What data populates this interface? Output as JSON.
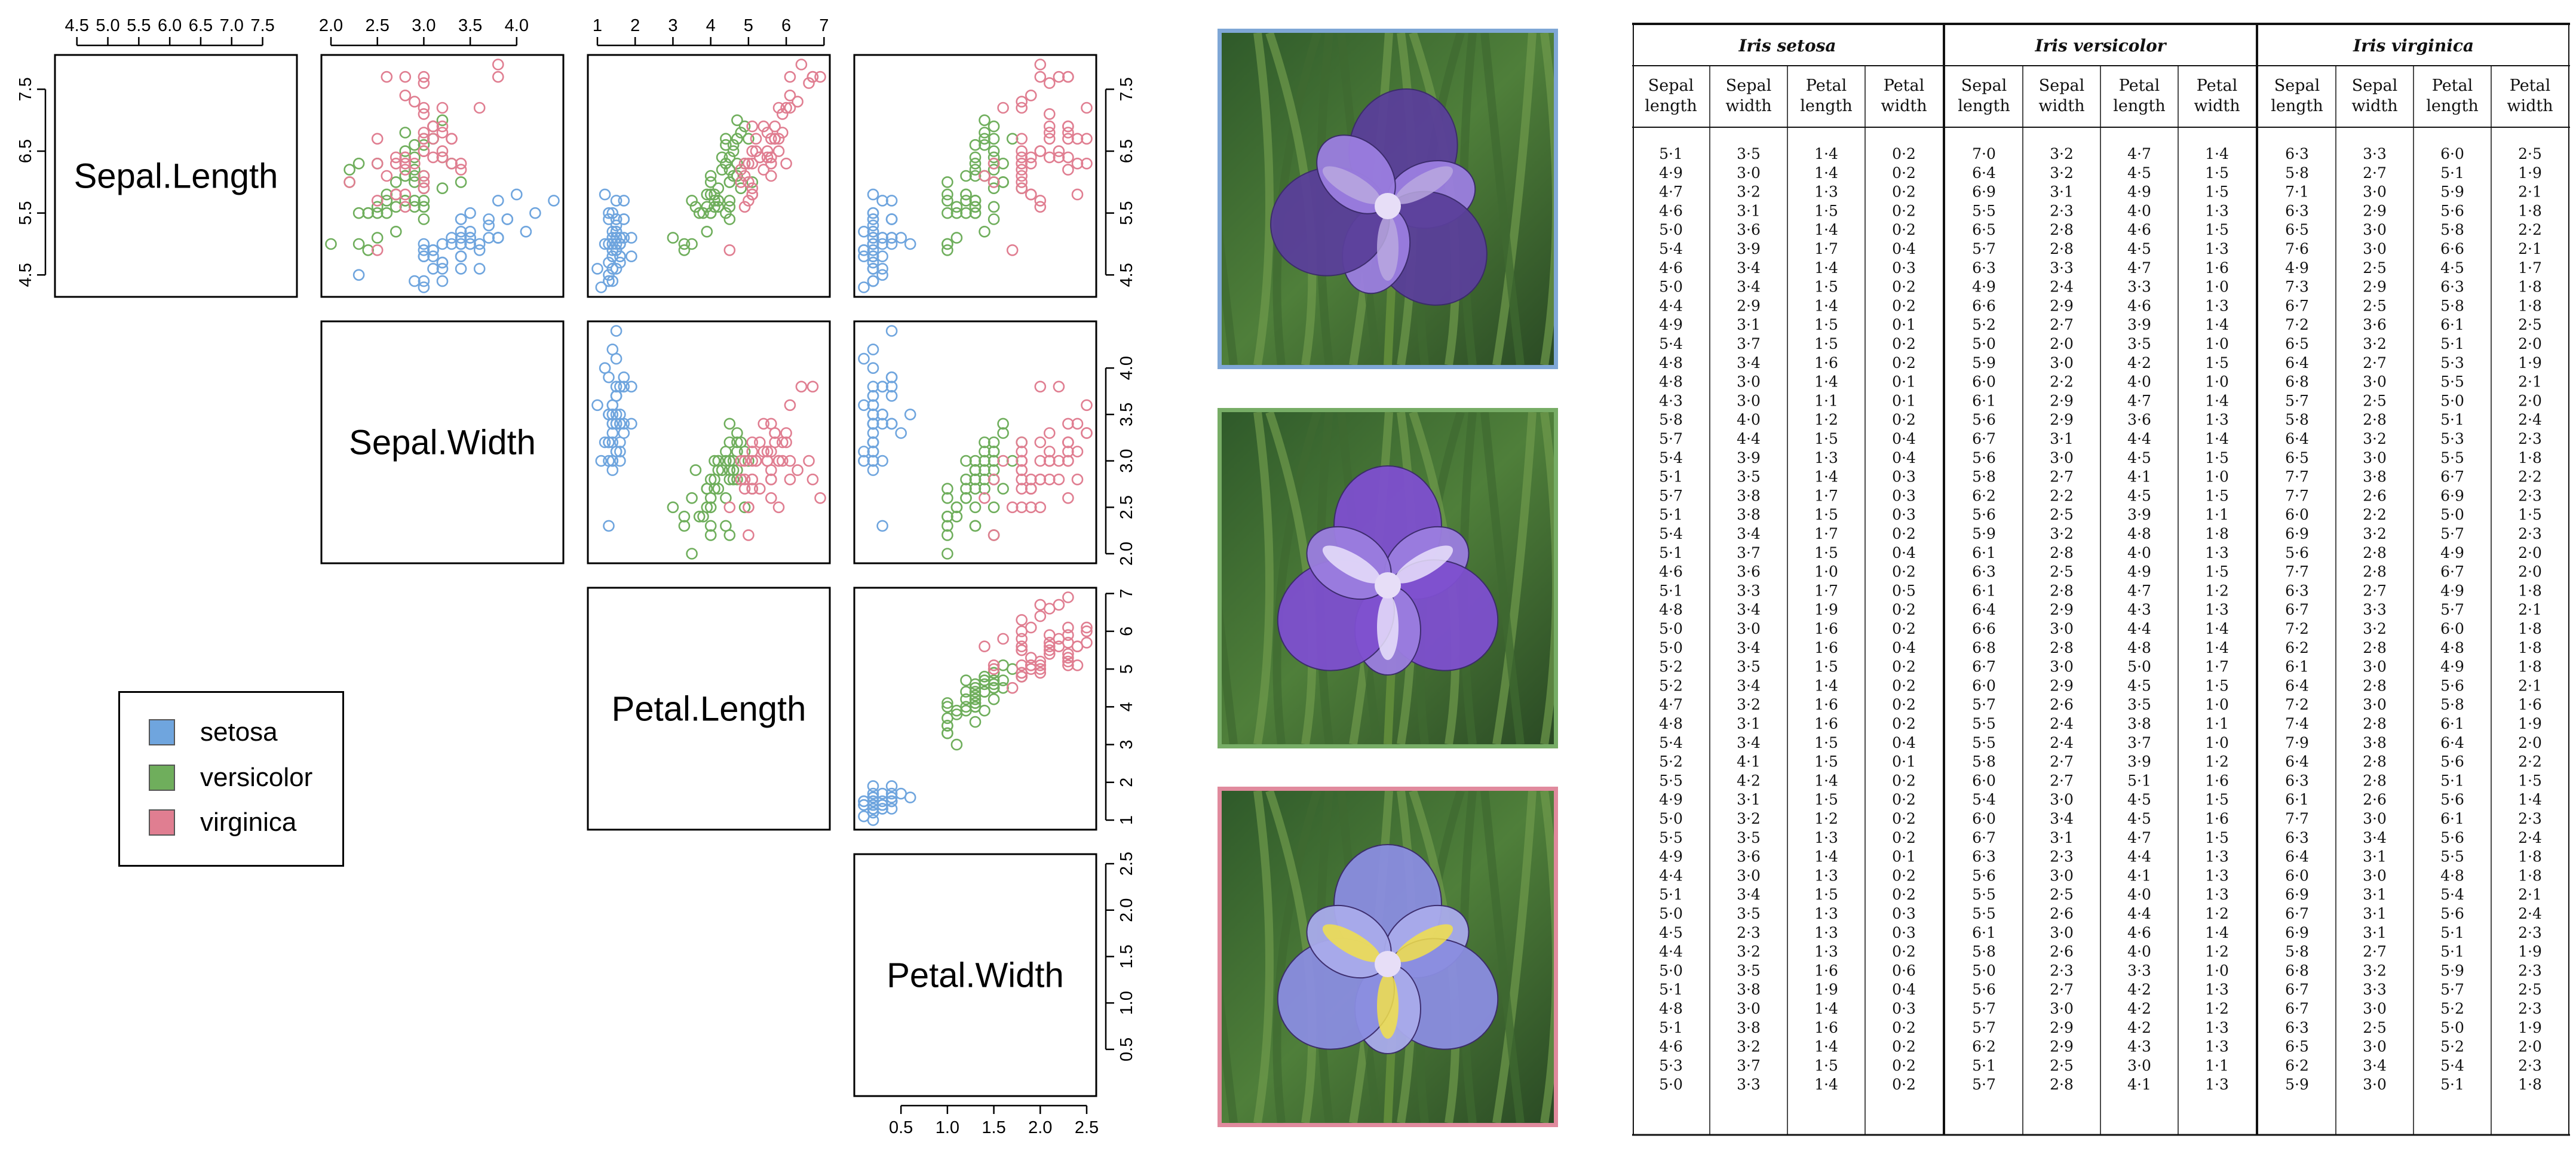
{
  "chart_data": {
    "type": "scatter",
    "variables": [
      "Sepal.Length",
      "Sepal.Width",
      "Petal.Length",
      "Petal.Width"
    ],
    "ticks": {
      "Sepal.Length": [
        "4.5",
        "5.5",
        "6.5",
        "7.5"
      ],
      "Sepal.Length_top": [
        "4.5",
        "5.0",
        "5.5",
        "6.0",
        "6.5",
        "7.0",
        "7.5"
      ],
      "Sepal.Width": [
        "2.0",
        "2.5",
        "3.0",
        "3.5",
        "4.0"
      ],
      "Petal.Length": [
        "1",
        "2",
        "3",
        "4",
        "5",
        "6",
        "7"
      ],
      "Petal.Width": [
        "0.5",
        "1.0",
        "1.5",
        "2.0",
        "2.5"
      ]
    },
    "ranges": {
      "Sepal.Length": [
        4.3,
        7.9
      ],
      "Sepal.Width": [
        2.0,
        4.4
      ],
      "Petal.Length": [
        1.0,
        6.9
      ],
      "Petal.Width": [
        0.1,
        2.5
      ]
    },
    "series": [
      {
        "name": "setosa",
        "color": "#6fa5de"
      },
      {
        "name": "versicolor",
        "color": "#6fae5c"
      },
      {
        "name": "virginica",
        "color": "#e07e91"
      }
    ],
    "legend_position": "bottom-left"
  },
  "legend": {
    "items": [
      "setosa",
      "versicolor",
      "virginica"
    ]
  },
  "table": {
    "species": [
      "Iris setosa",
      "Iris versicolor",
      "Iris virginica"
    ],
    "columns": [
      "Sepal length",
      "Sepal width",
      "Petal length",
      "Petal width"
    ],
    "setosa": [
      [
        "5·1",
        "3·5",
        "1·4",
        "0·2"
      ],
      [
        "4·9",
        "3·0",
        "1·4",
        "0·2"
      ],
      [
        "4·7",
        "3·2",
        "1·3",
        "0·2"
      ],
      [
        "4·6",
        "3·1",
        "1·5",
        "0·2"
      ],
      [
        "5·0",
        "3·6",
        "1·4",
        "0·2"
      ],
      [
        "5·4",
        "3·9",
        "1·7",
        "0·4"
      ],
      [
        "4·6",
        "3·4",
        "1·4",
        "0·3"
      ],
      [
        "5·0",
        "3·4",
        "1·5",
        "0·2"
      ],
      [
        "4·4",
        "2·9",
        "1·4",
        "0·2"
      ],
      [
        "4·9",
        "3·1",
        "1·5",
        "0·1"
      ],
      [
        "5·4",
        "3·7",
        "1·5",
        "0·2"
      ],
      [
        "4·8",
        "3·4",
        "1·6",
        "0·2"
      ],
      [
        "4·8",
        "3·0",
        "1·4",
        "0·1"
      ],
      [
        "4·3",
        "3·0",
        "1·1",
        "0·1"
      ],
      [
        "5·8",
        "4·0",
        "1·2",
        "0·2"
      ],
      [
        "5·7",
        "4·4",
        "1·5",
        "0·4"
      ],
      [
        "5·4",
        "3·9",
        "1·3",
        "0·4"
      ],
      [
        "5·1",
        "3·5",
        "1·4",
        "0·3"
      ],
      [
        "5·7",
        "3·8",
        "1·7",
        "0·3"
      ],
      [
        "5·1",
        "3·8",
        "1·5",
        "0·3"
      ],
      [
        "5·4",
        "3·4",
        "1·7",
        "0·2"
      ],
      [
        "5·1",
        "3·7",
        "1·5",
        "0·4"
      ],
      [
        "4·6",
        "3·6",
        "1·0",
        "0·2"
      ],
      [
        "5·1",
        "3·3",
        "1·7",
        "0·5"
      ],
      [
        "4·8",
        "3·4",
        "1·9",
        "0·2"
      ],
      [
        "5·0",
        "3·0",
        "1·6",
        "0·2"
      ],
      [
        "5·0",
        "3·4",
        "1·6",
        "0·4"
      ],
      [
        "5·2",
        "3·5",
        "1·5",
        "0·2"
      ],
      [
        "5·2",
        "3·4",
        "1·4",
        "0·2"
      ],
      [
        "4·7",
        "3·2",
        "1·6",
        "0·2"
      ],
      [
        "4·8",
        "3·1",
        "1·6",
        "0·2"
      ],
      [
        "5·4",
        "3·4",
        "1·5",
        "0·4"
      ],
      [
        "5·2",
        "4·1",
        "1·5",
        "0·1"
      ],
      [
        "5·5",
        "4·2",
        "1·4",
        "0·2"
      ],
      [
        "4·9",
        "3·1",
        "1·5",
        "0·2"
      ],
      [
        "5·0",
        "3·2",
        "1·2",
        "0·2"
      ],
      [
        "5·5",
        "3·5",
        "1·3",
        "0·2"
      ],
      [
        "4·9",
        "3·6",
        "1·4",
        "0·1"
      ],
      [
        "4·4",
        "3·0",
        "1·3",
        "0·2"
      ],
      [
        "5·1",
        "3·4",
        "1·5",
        "0·2"
      ],
      [
        "5·0",
        "3·5",
        "1·3",
        "0·3"
      ],
      [
        "4·5",
        "2·3",
        "1·3",
        "0·3"
      ],
      [
        "4·4",
        "3·2",
        "1·3",
        "0·2"
      ],
      [
        "5·0",
        "3·5",
        "1·6",
        "0·6"
      ],
      [
        "5·1",
        "3·8",
        "1·9",
        "0·4"
      ],
      [
        "4·8",
        "3·0",
        "1·4",
        "0·3"
      ],
      [
        "5·1",
        "3·8",
        "1·6",
        "0·2"
      ],
      [
        "4·6",
        "3·2",
        "1·4",
        "0·2"
      ],
      [
        "5·3",
        "3·7",
        "1·5",
        "0·2"
      ],
      [
        "5·0",
        "3·3",
        "1·4",
        "0·2"
      ]
    ],
    "versicolor": [
      [
        "7·0",
        "3·2",
        "4·7",
        "1·4"
      ],
      [
        "6·4",
        "3·2",
        "4·5",
        "1·5"
      ],
      [
        "6·9",
        "3·1",
        "4·9",
        "1·5"
      ],
      [
        "5·5",
        "2·3",
        "4·0",
        "1·3"
      ],
      [
        "6·5",
        "2·8",
        "4·6",
        "1·5"
      ],
      [
        "5·7",
        "2·8",
        "4·5",
        "1·3"
      ],
      [
        "6·3",
        "3·3",
        "4·7",
        "1·6"
      ],
      [
        "4·9",
        "2·4",
        "3·3",
        "1·0"
      ],
      [
        "6·6",
        "2·9",
        "4·6",
        "1·3"
      ],
      [
        "5·2",
        "2·7",
        "3·9",
        "1·4"
      ],
      [
        "5·0",
        "2·0",
        "3·5",
        "1·0"
      ],
      [
        "5·9",
        "3·0",
        "4·2",
        "1·5"
      ],
      [
        "6·0",
        "2·2",
        "4·0",
        "1·0"
      ],
      [
        "6·1",
        "2·9",
        "4·7",
        "1·4"
      ],
      [
        "5·6",
        "2·9",
        "3·6",
        "1·3"
      ],
      [
        "6·7",
        "3·1",
        "4·4",
        "1·4"
      ],
      [
        "5·6",
        "3·0",
        "4·5",
        "1·5"
      ],
      [
        "5·8",
        "2·7",
        "4·1",
        "1·0"
      ],
      [
        "6·2",
        "2·2",
        "4·5",
        "1·5"
      ],
      [
        "5·6",
        "2·5",
        "3·9",
        "1·1"
      ],
      [
        "5·9",
        "3·2",
        "4·8",
        "1·8"
      ],
      [
        "6·1",
        "2·8",
        "4·0",
        "1·3"
      ],
      [
        "6·3",
        "2·5",
        "4·9",
        "1·5"
      ],
      [
        "6·1",
        "2·8",
        "4·7",
        "1·2"
      ],
      [
        "6·4",
        "2·9",
        "4·3",
        "1·3"
      ],
      [
        "6·6",
        "3·0",
        "4·4",
        "1·4"
      ],
      [
        "6·8",
        "2·8",
        "4·8",
        "1·4"
      ],
      [
        "6·7",
        "3·0",
        "5·0",
        "1·7"
      ],
      [
        "6·0",
        "2·9",
        "4·5",
        "1·5"
      ],
      [
        "5·7",
        "2·6",
        "3·5",
        "1·0"
      ],
      [
        "5·5",
        "2·4",
        "3·8",
        "1·1"
      ],
      [
        "5·5",
        "2·4",
        "3·7",
        "1·0"
      ],
      [
        "5·8",
        "2·7",
        "3·9",
        "1·2"
      ],
      [
        "6·0",
        "2·7",
        "5·1",
        "1·6"
      ],
      [
        "5·4",
        "3·0",
        "4·5",
        "1·5"
      ],
      [
        "6·0",
        "3·4",
        "4·5",
        "1·6"
      ],
      [
        "6·7",
        "3·1",
        "4·7",
        "1·5"
      ],
      [
        "6·3",
        "2·3",
        "4·4",
        "1·3"
      ],
      [
        "5·6",
        "3·0",
        "4·1",
        "1·3"
      ],
      [
        "5·5",
        "2·5",
        "4·0",
        "1·3"
      ],
      [
        "5·5",
        "2·6",
        "4·4",
        "1·2"
      ],
      [
        "6·1",
        "3·0",
        "4·6",
        "1·4"
      ],
      [
        "5·8",
        "2·6",
        "4·0",
        "1·2"
      ],
      [
        "5·0",
        "2·3",
        "3·3",
        "1·0"
      ],
      [
        "5·6",
        "2·7",
        "4·2",
        "1·3"
      ],
      [
        "5·7",
        "3·0",
        "4·2",
        "1·2"
      ],
      [
        "5·7",
        "2·9",
        "4·2",
        "1·3"
      ],
      [
        "6·2",
        "2·9",
        "4·3",
        "1·3"
      ],
      [
        "5·1",
        "2·5",
        "3·0",
        "1·1"
      ],
      [
        "5·7",
        "2·8",
        "4·1",
        "1·3"
      ]
    ],
    "virginica": [
      [
        "6·3",
        "3·3",
        "6·0",
        "2·5"
      ],
      [
        "5·8",
        "2·7",
        "5·1",
        "1·9"
      ],
      [
        "7·1",
        "3·0",
        "5·9",
        "2·1"
      ],
      [
        "6·3",
        "2·9",
        "5·6",
        "1·8"
      ],
      [
        "6·5",
        "3·0",
        "5·8",
        "2·2"
      ],
      [
        "7·6",
        "3·0",
        "6·6",
        "2·1"
      ],
      [
        "4·9",
        "2·5",
        "4·5",
        "1·7"
      ],
      [
        "7·3",
        "2·9",
        "6·3",
        "1·8"
      ],
      [
        "6·7",
        "2·5",
        "5·8",
        "1·8"
      ],
      [
        "7·2",
        "3·6",
        "6·1",
        "2·5"
      ],
      [
        "6·5",
        "3·2",
        "5·1",
        "2·0"
      ],
      [
        "6·4",
        "2·7",
        "5·3",
        "1·9"
      ],
      [
        "6·8",
        "3·0",
        "5·5",
        "2·1"
      ],
      [
        "5·7",
        "2·5",
        "5·0",
        "2·0"
      ],
      [
        "5·8",
        "2·8",
        "5·1",
        "2·4"
      ],
      [
        "6·4",
        "3·2",
        "5·3",
        "2·3"
      ],
      [
        "6·5",
        "3·0",
        "5·5",
        "1·8"
      ],
      [
        "7·7",
        "3·8",
        "6·7",
        "2·2"
      ],
      [
        "7·7",
        "2·6",
        "6·9",
        "2·3"
      ],
      [
        "6·0",
        "2·2",
        "5·0",
        "1·5"
      ],
      [
        "6·9",
        "3·2",
        "5·7",
        "2·3"
      ],
      [
        "5·6",
        "2·8",
        "4·9",
        "2·0"
      ],
      [
        "7·7",
        "2·8",
        "6·7",
        "2·0"
      ],
      [
        "6·3",
        "2·7",
        "4·9",
        "1·8"
      ],
      [
        "6·7",
        "3·3",
        "5·7",
        "2·1"
      ],
      [
        "7·2",
        "3·2",
        "6·0",
        "1·8"
      ],
      [
        "6·2",
        "2·8",
        "4·8",
        "1·8"
      ],
      [
        "6·1",
        "3·0",
        "4·9",
        "1·8"
      ],
      [
        "6·4",
        "2·8",
        "5·6",
        "2·1"
      ],
      [
        "7·2",
        "3·0",
        "5·8",
        "1·6"
      ],
      [
        "7·4",
        "2·8",
        "6·1",
        "1·9"
      ],
      [
        "7·9",
        "3·8",
        "6·4",
        "2·0"
      ],
      [
        "6·4",
        "2·8",
        "5·6",
        "2·2"
      ],
      [
        "6·3",
        "2·8",
        "5·1",
        "1·5"
      ],
      [
        "6·1",
        "2·6",
        "5·6",
        "1·4"
      ],
      [
        "7·7",
        "3·0",
        "6·1",
        "2·3"
      ],
      [
        "6·3",
        "3·4",
        "5·6",
        "2·4"
      ],
      [
        "6·4",
        "3·1",
        "5·5",
        "1·8"
      ],
      [
        "6·0",
        "3·0",
        "4·8",
        "1·8"
      ],
      [
        "6·9",
        "3·1",
        "5·4",
        "2·1"
      ],
      [
        "6·7",
        "3·1",
        "5·6",
        "2·4"
      ],
      [
        "6·9",
        "3·1",
        "5·1",
        "2·3"
      ],
      [
        "5·8",
        "2·7",
        "5·1",
        "1·9"
      ],
      [
        "6·8",
        "3·2",
        "5·9",
        "2·3"
      ],
      [
        "6·7",
        "3·3",
        "5·7",
        "2·5"
      ],
      [
        "6·7",
        "3·0",
        "5·2",
        "2·3"
      ],
      [
        "6·3",
        "2·5",
        "5·0",
        "1·9"
      ],
      [
        "6·5",
        "3·0",
        "5·2",
        "2·0"
      ],
      [
        "6·2",
        "3·4",
        "5·4",
        "2·3"
      ],
      [
        "5·9",
        "3·0",
        "5·1",
        "1·8"
      ]
    ]
  },
  "photos": [
    {
      "name": "iris-setosa-photo",
      "border": "#7fa7d6",
      "petal": "#5a3f9a",
      "accent": "#b9a8df"
    },
    {
      "name": "iris-versicolor-photo",
      "border": "#77ad66",
      "petal": "#7e4fcf",
      "accent": "#e9e1fb"
    },
    {
      "name": "iris-virginica-photo",
      "border": "#e08a9d",
      "petal": "#8a8de0",
      "accent": "#f2e04a"
    }
  ]
}
